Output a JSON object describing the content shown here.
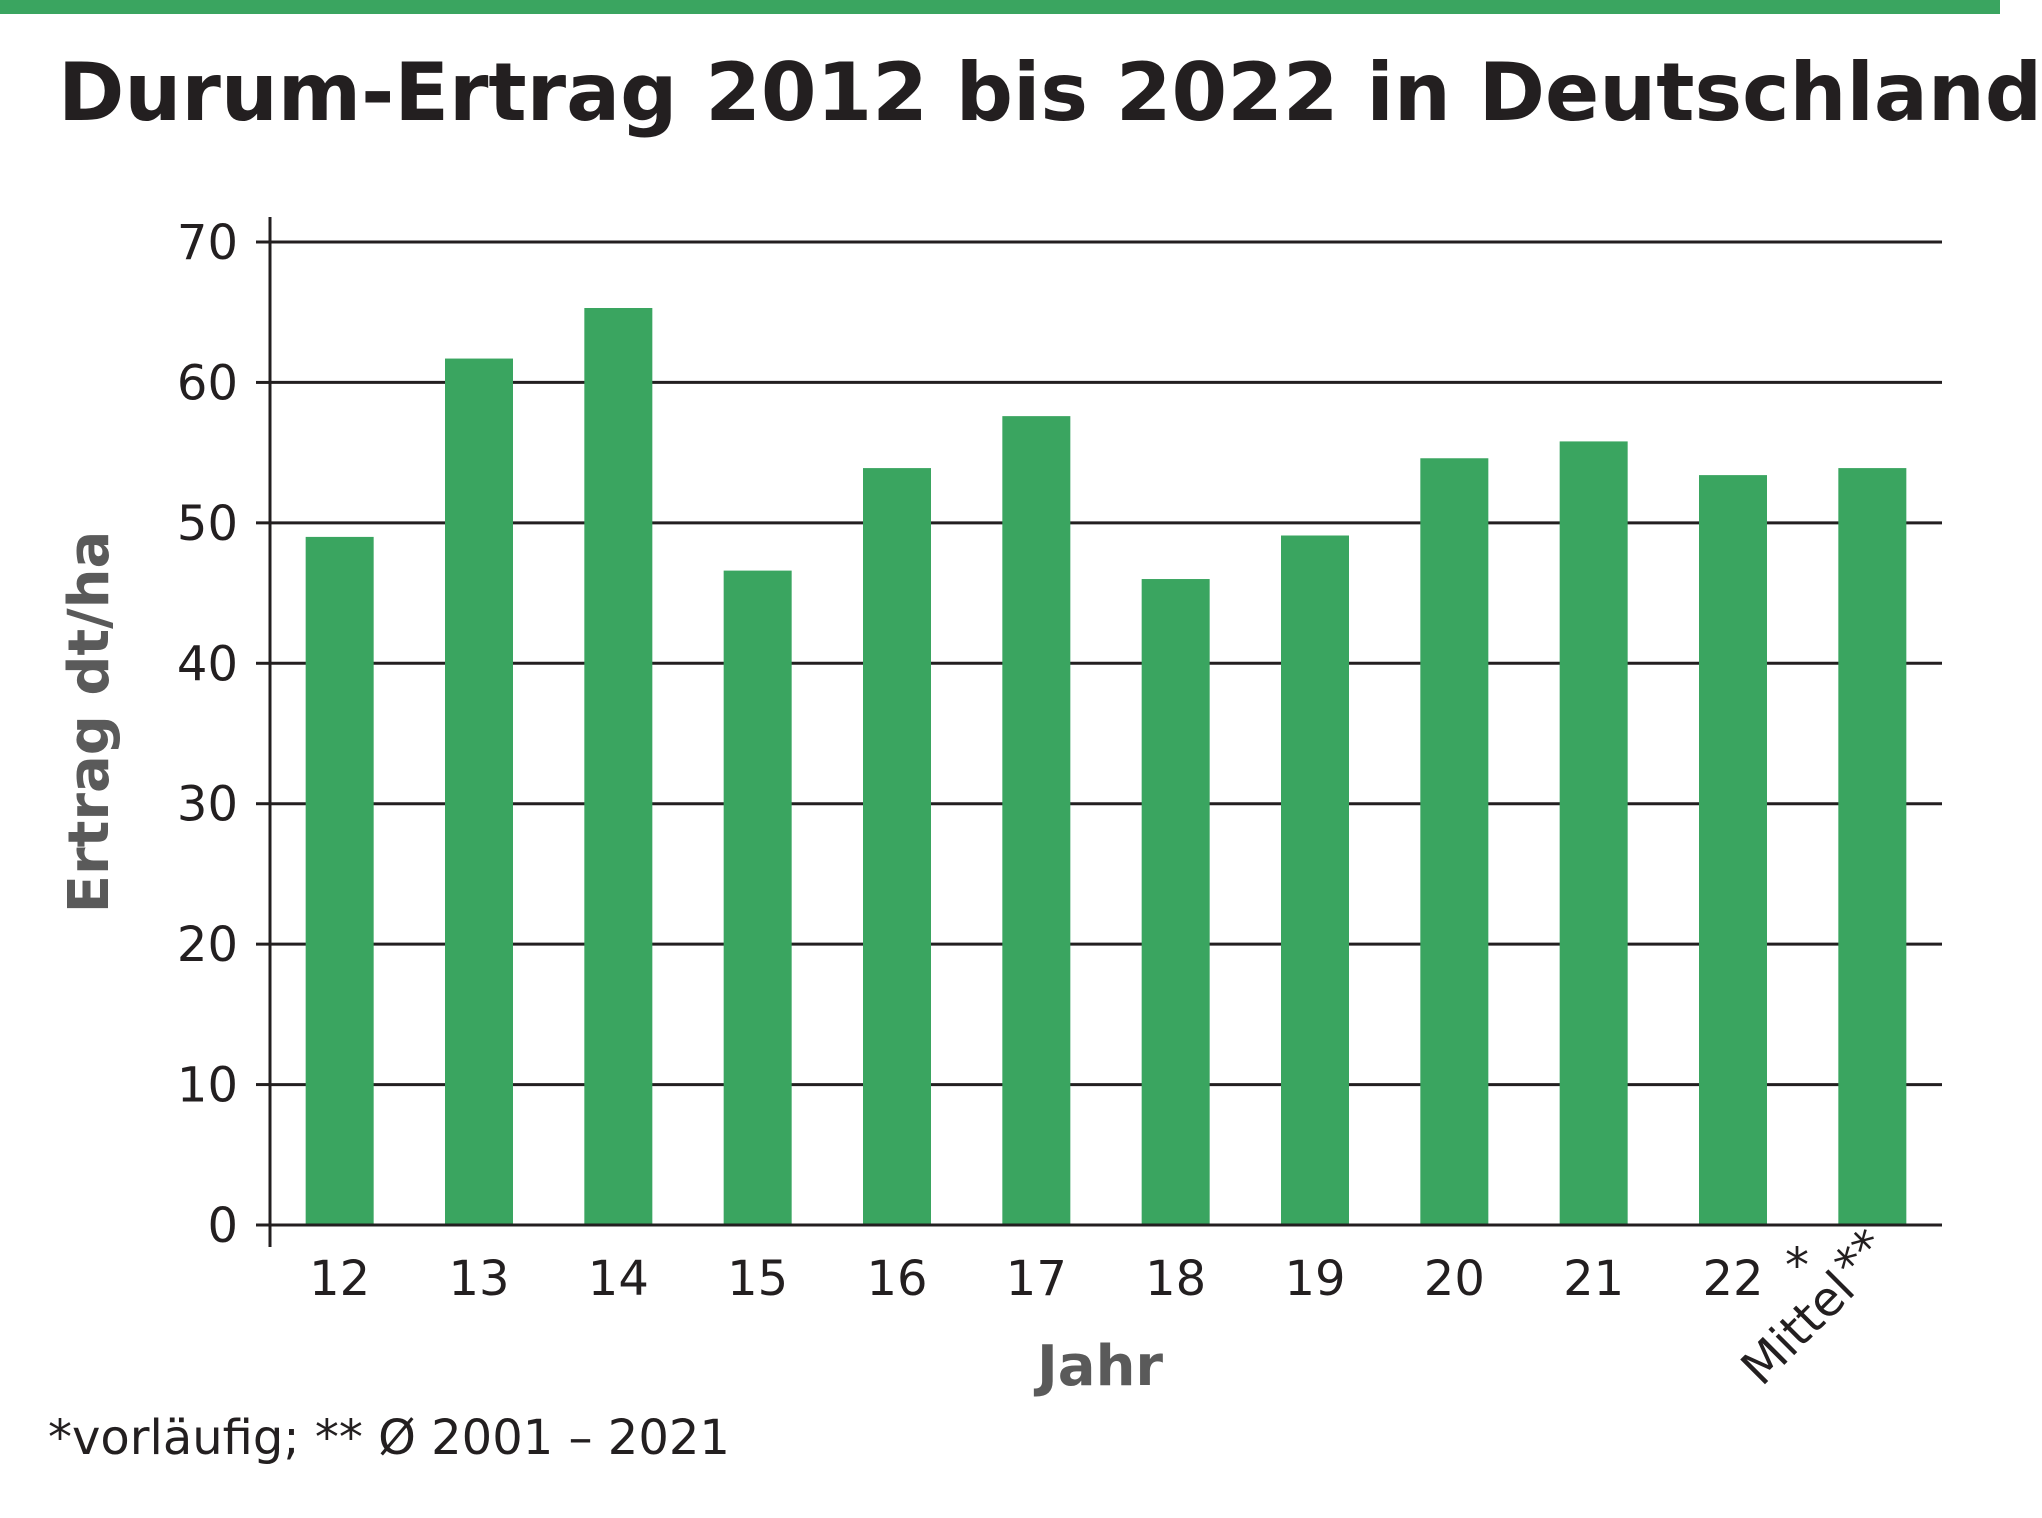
{
  "colors": {
    "accent": "#3aa560",
    "bar": "#3aa560",
    "text": "#231f20",
    "axis_title": "#5a5a5a",
    "grid": "#231f20"
  },
  "chart_data": {
    "type": "bar",
    "title": "Durum-Ertrag 2012 bis 2022 in Deutschland",
    "xlabel": "Jahr",
    "ylabel": "Ertrag dt/ha",
    "categories": [
      "12",
      "13",
      "14",
      "15",
      "16",
      "17",
      "18",
      "19",
      "20",
      "21",
      "22",
      "Mittel"
    ],
    "category_marks": [
      "",
      "",
      "",
      "",
      "",
      "",
      "",
      "",
      "",
      "",
      "*",
      "**"
    ],
    "values": [
      49.0,
      61.7,
      65.3,
      46.6,
      53.9,
      57.6,
      46.0,
      49.1,
      54.6,
      55.8,
      53.4,
      53.9
    ],
    "ylim": [
      0,
      70
    ],
    "yticks": [
      0,
      10,
      20,
      30,
      40,
      50,
      60,
      70
    ],
    "grid": true,
    "legend": "none"
  },
  "footnote": "*vorläufig; ** Ø 2001 – 2021"
}
